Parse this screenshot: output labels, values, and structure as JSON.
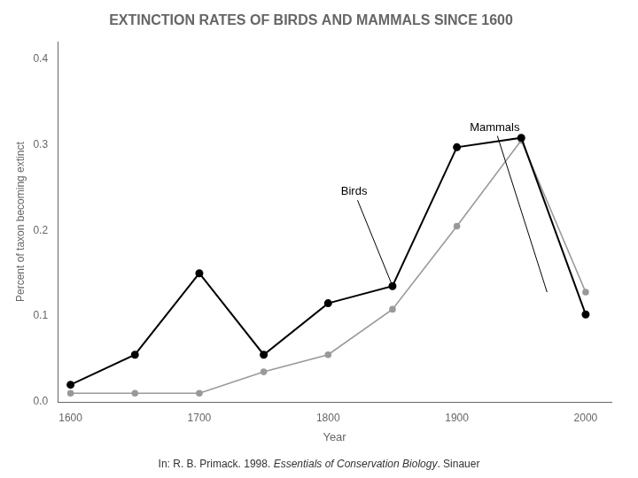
{
  "chart_data": {
    "type": "line",
    "title": "EXTINCTION RATES OF BIRDS AND MAMMALS SINCE 1600",
    "x_label": "Year",
    "y_label": "Percent of taxon becoming extinct",
    "x": [
      1600,
      1650,
      1700,
      1750,
      1800,
      1850,
      1900,
      1950,
      2000
    ],
    "series": [
      {
        "name": "Birds",
        "color": "#000000",
        "values": [
          0.02,
          0.055,
          0.15,
          0.055,
          0.115,
          0.135,
          0.297,
          0.308,
          0.102
        ]
      },
      {
        "name": "Mammals",
        "color": "#999999",
        "values": [
          0.01,
          0.01,
          0.01,
          0.035,
          0.055,
          0.108,
          0.205,
          0.305,
          0.128
        ]
      }
    ],
    "xlim": [
      1590,
      2020
    ],
    "ylim": [
      0.0,
      0.42
    ],
    "xticks": [
      1600,
      1700,
      1800,
      1900,
      2000
    ],
    "yticks": [
      {
        "value": 0.0,
        "label": "0.0"
      },
      0.1,
      0.2,
      0.3,
      0.4
    ],
    "grid": false,
    "marker": "circle",
    "annotations": [
      {
        "text": "Birds",
        "xy": [
          1850,
          0.135
        ],
        "xytext": [
          1810,
          0.245
        ]
      },
      {
        "text": "Mammals",
        "xy": [
          1970,
          0.128
        ],
        "xytext": [
          1910,
          0.32
        ]
      }
    ],
    "footnote": [
      "In: R. B. Primack. 1998. ",
      "Essentials of Conservation Biology",
      ". Sinauer"
    ]
  }
}
